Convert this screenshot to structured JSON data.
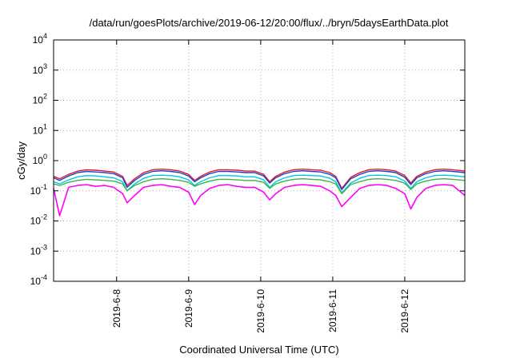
{
  "chart_data": {
    "type": "line",
    "title": "/data/run/goesPlots/archive/2019-06-12/20:00/flux/../bryn/5daysEarthData.plot",
    "xlabel": "Coordinated Universal Time (UTC)",
    "ylabel": "cGy/day",
    "yscale": "log",
    "ylim": [
      0.0001,
      10000
    ],
    "xlim": [
      "2019-06-07T03:00",
      "2019-06-12T20:00"
    ],
    "grid": true,
    "yticks": [
      {
        "base": "10",
        "exp": "-4",
        "value": 0.0001
      },
      {
        "base": "10",
        "exp": "-3",
        "value": 0.001
      },
      {
        "base": "10",
        "exp": "-2",
        "value": 0.01
      },
      {
        "base": "10",
        "exp": "-1",
        "value": 0.1
      },
      {
        "base": "10",
        "exp": "0",
        "value": 1
      },
      {
        "base": "10",
        "exp": "1",
        "value": 10
      },
      {
        "base": "10",
        "exp": "2",
        "value": 100
      },
      {
        "base": "10",
        "exp": "3",
        "value": 1000
      },
      {
        "base": "10",
        "exp": "4",
        "value": 10000
      }
    ],
    "xticks": [
      {
        "label": "2019-6-8",
        "value": "2019-06-08T00:00"
      },
      {
        "label": "2019-6-9",
        "value": "2019-06-09T00:00"
      },
      {
        "label": "2019-6-10",
        "value": "2019-06-10T00:00"
      },
      {
        "label": "2019-6-11",
        "value": "2019-06-11T00:00"
      },
      {
        "label": "2019-6-12",
        "value": "2019-06-12T00:00"
      }
    ],
    "x": [
      "2019-06-07T03:00",
      "2019-06-07T05:00",
      "2019-06-07T08:00",
      "2019-06-07T11:00",
      "2019-06-07T14:00",
      "2019-06-07T17:00",
      "2019-06-07T20:00",
      "2019-06-07T23:00",
      "2019-06-08T02:00",
      "2019-06-08T03:30",
      "2019-06-08T06:00",
      "2019-06-08T09:00",
      "2019-06-08T12:00",
      "2019-06-08T15:00",
      "2019-06-08T18:00",
      "2019-06-08T21:00",
      "2019-06-09T00:00",
      "2019-06-09T02:00",
      "2019-06-09T04:00",
      "2019-06-09T07:00",
      "2019-06-09T10:00",
      "2019-06-09T13:00",
      "2019-06-09T16:00",
      "2019-06-09T19:00",
      "2019-06-09T22:00",
      "2019-06-10T01:00",
      "2019-06-10T03:00",
      "2019-06-10T05:00",
      "2019-06-10T08:00",
      "2019-06-10T11:00",
      "2019-06-10T14:00",
      "2019-06-10T17:00",
      "2019-06-10T20:00",
      "2019-06-10T23:00",
      "2019-06-11T01:00",
      "2019-06-11T03:00",
      "2019-06-11T06:00",
      "2019-06-11T09:00",
      "2019-06-11T12:00",
      "2019-06-11T15:00",
      "2019-06-11T18:00",
      "2019-06-11T21:00",
      "2019-06-12T00:00",
      "2019-06-12T02:00",
      "2019-06-12T04:00",
      "2019-06-12T07:00",
      "2019-06-12T10:00",
      "2019-06-12T13:00",
      "2019-06-12T16:00",
      "2019-06-12T20:00"
    ],
    "series": [
      {
        "color": "#e41a1c",
        "values": [
          0.3,
          0.25,
          0.35,
          0.45,
          0.5,
          0.48,
          0.45,
          0.42,
          0.3,
          0.15,
          0.25,
          0.4,
          0.5,
          0.52,
          0.5,
          0.45,
          0.35,
          0.22,
          0.3,
          0.42,
          0.5,
          0.5,
          0.48,
          0.45,
          0.45,
          0.35,
          0.2,
          0.3,
          0.42,
          0.5,
          0.52,
          0.5,
          0.48,
          0.4,
          0.3,
          0.12,
          0.28,
          0.4,
          0.5,
          0.52,
          0.5,
          0.45,
          0.32,
          0.18,
          0.3,
          0.42,
          0.5,
          0.52,
          0.5,
          0.45
        ]
      },
      {
        "color": "#1f3fd6",
        "values": [
          0.27,
          0.22,
          0.31,
          0.4,
          0.44,
          0.42,
          0.4,
          0.37,
          0.27,
          0.13,
          0.22,
          0.35,
          0.44,
          0.46,
          0.44,
          0.4,
          0.31,
          0.2,
          0.27,
          0.37,
          0.44,
          0.44,
          0.42,
          0.4,
          0.4,
          0.31,
          0.18,
          0.27,
          0.37,
          0.44,
          0.46,
          0.44,
          0.42,
          0.35,
          0.27,
          0.11,
          0.25,
          0.35,
          0.44,
          0.46,
          0.44,
          0.4,
          0.28,
          0.16,
          0.27,
          0.37,
          0.44,
          0.46,
          0.44,
          0.4
        ]
      },
      {
        "color": "#00c8e0",
        "values": [
          0.2,
          0.17,
          0.23,
          0.29,
          0.32,
          0.31,
          0.29,
          0.27,
          0.2,
          0.1,
          0.17,
          0.26,
          0.32,
          0.33,
          0.32,
          0.29,
          0.23,
          0.15,
          0.2,
          0.27,
          0.32,
          0.32,
          0.31,
          0.29,
          0.29,
          0.23,
          0.13,
          0.2,
          0.27,
          0.32,
          0.33,
          0.32,
          0.31,
          0.26,
          0.2,
          0.085,
          0.18,
          0.26,
          0.32,
          0.33,
          0.32,
          0.29,
          0.21,
          0.12,
          0.2,
          0.27,
          0.32,
          0.33,
          0.32,
          0.29
        ]
      },
      {
        "color": "#3cb44b",
        "values": [
          0.17,
          0.15,
          0.19,
          0.22,
          0.24,
          0.23,
          0.22,
          0.21,
          0.17,
          0.1,
          0.15,
          0.2,
          0.24,
          0.25,
          0.24,
          0.22,
          0.19,
          0.14,
          0.17,
          0.21,
          0.24,
          0.24,
          0.23,
          0.22,
          0.22,
          0.19,
          0.12,
          0.17,
          0.21,
          0.24,
          0.25,
          0.24,
          0.23,
          0.2,
          0.17,
          0.08,
          0.16,
          0.2,
          0.24,
          0.25,
          0.24,
          0.22,
          0.18,
          0.11,
          0.17,
          0.21,
          0.24,
          0.25,
          0.24,
          0.22
        ]
      },
      {
        "color": "#ff00ff",
        "values": [
          0.12,
          0.015,
          0.13,
          0.15,
          0.16,
          0.14,
          0.15,
          0.13,
          0.08,
          0.04,
          0.07,
          0.13,
          0.15,
          0.16,
          0.14,
          0.13,
          0.09,
          0.035,
          0.07,
          0.12,
          0.15,
          0.16,
          0.14,
          0.13,
          0.13,
          0.09,
          0.05,
          0.08,
          0.13,
          0.15,
          0.16,
          0.15,
          0.14,
          0.1,
          0.07,
          0.03,
          0.06,
          0.12,
          0.15,
          0.16,
          0.15,
          0.12,
          0.08,
          0.025,
          0.06,
          0.12,
          0.15,
          0.16,
          0.15,
          0.07
        ]
      }
    ]
  }
}
